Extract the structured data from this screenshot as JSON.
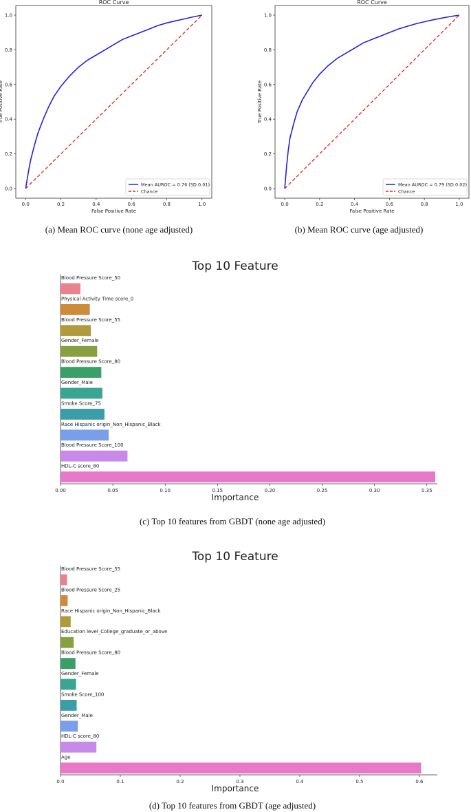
{
  "captions": {
    "a": "(a) Mean ROC curve (none age adjusted)",
    "b": "(b) Mean ROC curve (age adjusted)",
    "c": "(c) Top 10 features from GBDT (none age adjusted)",
    "d": "(d) Top 10 features from GBDT (age adjusted)"
  },
  "chart_data": [
    {
      "id": "roc_a",
      "type": "line",
      "title": "ROC Curve",
      "xlabel": "False Positive Rate",
      "ylabel": "True Positive Rate",
      "xlim": [
        0,
        1
      ],
      "ylim": [
        0,
        1
      ],
      "xticks": [
        "0.0",
        "0.2",
        "0.4",
        "0.6",
        "0.8",
        "1.0"
      ],
      "yticks": [
        "0.0",
        "0.2",
        "0.4",
        "0.6",
        "0.8",
        "1.0"
      ],
      "legend_position": "bottom-right",
      "series": [
        {
          "name": "Mean AUROC = 0.76 (SD  0.01)",
          "color": "#2222dd",
          "x": [
            0,
            0.01,
            0.02,
            0.03,
            0.05,
            0.07,
            0.1,
            0.13,
            0.16,
            0.2,
            0.25,
            0.3,
            0.35,
            0.4,
            0.45,
            0.5,
            0.55,
            0.6,
            0.65,
            0.7,
            0.75,
            0.8,
            0.85,
            0.9,
            0.95,
            1.0
          ],
          "y": [
            0,
            0.06,
            0.12,
            0.17,
            0.25,
            0.32,
            0.4,
            0.47,
            0.53,
            0.59,
            0.65,
            0.7,
            0.74,
            0.77,
            0.8,
            0.83,
            0.86,
            0.88,
            0.9,
            0.92,
            0.94,
            0.955,
            0.967,
            0.978,
            0.99,
            1.0
          ]
        },
        {
          "name": "Chance",
          "color": "#dd2222",
          "dashed": true,
          "x": [
            0,
            1
          ],
          "y": [
            0,
            1
          ]
        }
      ]
    },
    {
      "id": "roc_b",
      "type": "line",
      "title": "ROC Curve",
      "xlabel": "False Positive Rate",
      "ylabel": "True Positive Rate",
      "xlim": [
        0,
        1
      ],
      "ylim": [
        0,
        1
      ],
      "xticks": [
        "0.0",
        "0.2",
        "0.4",
        "0.6",
        "0.8",
        "1.0"
      ],
      "yticks": [
        "0.0",
        "0.2",
        "0.4",
        "0.6",
        "0.8",
        "1.0"
      ],
      "legend_position": "bottom-right",
      "series": [
        {
          "name": "Mean AUROC = 0.79 (SD  0.02)",
          "color": "#2222dd",
          "x": [
            0,
            0.01,
            0.02,
            0.03,
            0.05,
            0.07,
            0.1,
            0.13,
            0.16,
            0.2,
            0.25,
            0.3,
            0.35,
            0.4,
            0.45,
            0.5,
            0.55,
            0.6,
            0.65,
            0.7,
            0.75,
            0.8,
            0.85,
            0.9,
            0.95,
            1.0
          ],
          "y": [
            0,
            0.12,
            0.22,
            0.29,
            0.37,
            0.44,
            0.51,
            0.56,
            0.61,
            0.66,
            0.71,
            0.75,
            0.78,
            0.81,
            0.84,
            0.86,
            0.88,
            0.9,
            0.92,
            0.935,
            0.95,
            0.962,
            0.973,
            0.983,
            0.992,
            1.0
          ]
        },
        {
          "name": "Chance",
          "color": "#dd2222",
          "dashed": true,
          "x": [
            0,
            1
          ],
          "y": [
            0,
            1
          ]
        }
      ]
    },
    {
      "id": "bar_c",
      "type": "bar",
      "orientation": "horizontal",
      "title": "Top 10 Feature",
      "xlabel": "Importance",
      "xlim": [
        0,
        0.36
      ],
      "xticks": [
        "0.00",
        "0.05",
        "0.10",
        "0.15",
        "0.20",
        "0.25",
        "0.30",
        "0.35"
      ],
      "xtick_values": [
        0,
        0.05,
        0.1,
        0.15,
        0.2,
        0.25,
        0.3,
        0.35
      ],
      "categories": [
        "Blood Pressure Score_50",
        "Physical Activity Time score_0",
        "Blood Pressure Score_55",
        "Gender_Female",
        "Blood Pressure Score_80",
        "Gender_Male",
        "Smoke Score_75",
        "Race Hispanic origin_Non_Hispanic_Black",
        "Blood Pressure Score_100",
        "HDL-C score_80"
      ],
      "values": [
        0.019,
        0.028,
        0.029,
        0.035,
        0.039,
        0.04,
        0.042,
        0.046,
        0.064,
        0.358
      ],
      "colors": [
        "#e8828c",
        "#d08a3c",
        "#b09a3c",
        "#88a040",
        "#3aa06a",
        "#3aa590",
        "#3a9eaa",
        "#7a9eea",
        "#c88ae8",
        "#e67ac8"
      ]
    },
    {
      "id": "bar_d",
      "type": "bar",
      "orientation": "horizontal",
      "title": "Top 10 Feature",
      "xlabel": "Importance",
      "xlim": [
        0,
        0.63
      ],
      "xticks": [
        "0.0",
        "0.1",
        "0.2",
        "0.3",
        "0.4",
        "0.5",
        "0.6"
      ],
      "xtick_values": [
        0,
        0.1,
        0.2,
        0.3,
        0.4,
        0.5,
        0.6
      ],
      "categories": [
        "Blood Pressure Score_55",
        "Blood Pressure Score_25",
        "Race Hispanic origin_Non_Hispanic_Black",
        "Education level_College_graduate_or_above",
        "Blood Pressure Score_80",
        "Gender_Female",
        "Smoke Score_100",
        "Gender_Male",
        "HDL-C score_80",
        "Age"
      ],
      "values": [
        0.011,
        0.012,
        0.017,
        0.022,
        0.025,
        0.026,
        0.027,
        0.029,
        0.06,
        0.603
      ],
      "colors": [
        "#e8828c",
        "#d08a3c",
        "#b09a3c",
        "#88a040",
        "#3aa06a",
        "#3aa590",
        "#3a9eaa",
        "#7a9eea",
        "#c88ae8",
        "#e67ac8"
      ]
    }
  ]
}
